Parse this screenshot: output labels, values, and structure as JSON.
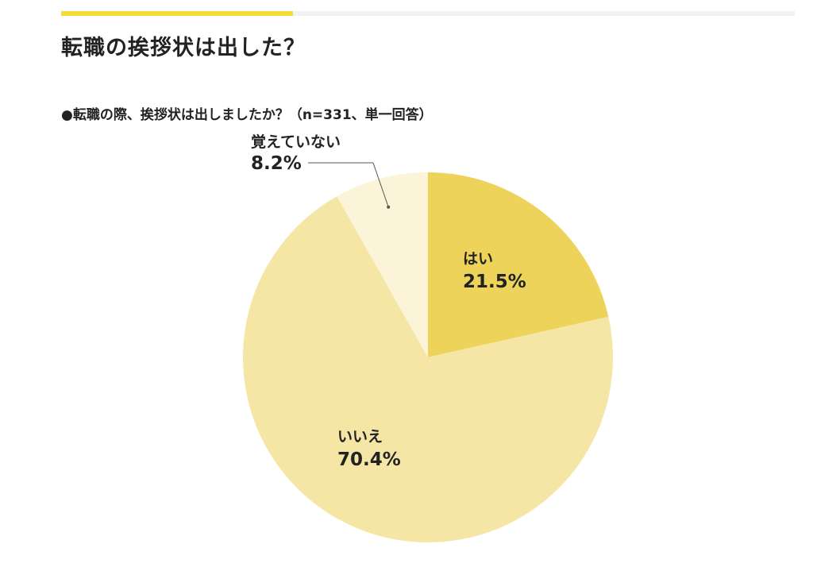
{
  "header": {
    "title": "転職の挨拶状は出した？",
    "progress": 0.316,
    "progress_color": "#f4dd3a"
  },
  "chart_data": {
    "type": "pie",
    "title": "●転職の際、挨拶状は出しましたか？（n=331、単一回答）",
    "start_angle_deg": 0,
    "direction": "clockwise",
    "slices": [
      {
        "label": "はい",
        "value_label": "21.5%",
        "value": 21.5,
        "color": "#eed35a"
      },
      {
        "label": "いいえ",
        "value_label": "70.4%",
        "value": 70.4,
        "color": "#f5e6a6"
      },
      {
        "label": "覚えていない",
        "value_label": "8.2%",
        "value": 8.2,
        "color": "#fcf4d8"
      }
    ]
  }
}
